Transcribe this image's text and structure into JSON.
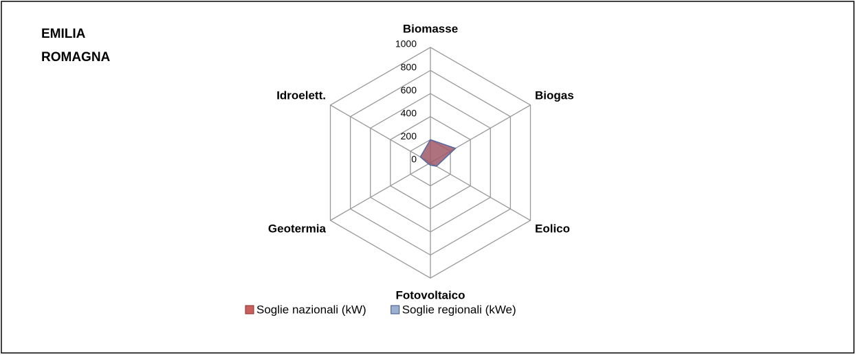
{
  "chart_data": {
    "type": "radar",
    "title": [
      "EMILIA",
      "ROMAGNA"
    ],
    "categories": [
      "Biomasse",
      "Biogas",
      "Eolico",
      "Fotovoltaico",
      "Geotermia",
      "Idroelett."
    ],
    "series": [
      {
        "name": "Soglie nazionali (kW)",
        "color": "#c0504d",
        "values": [
          200,
          250,
          60,
          20,
          20,
          100
        ]
      },
      {
        "name": "Soglie regionali (kWe)",
        "color": "#4f6fa8",
        "values": [
          200,
          250,
          60,
          20,
          20,
          100
        ]
      }
    ],
    "ylim": [
      0,
      1000
    ],
    "yticks": [
      0,
      200,
      400,
      600,
      800,
      1000
    ],
    "grid": true,
    "legend": "bottom"
  }
}
